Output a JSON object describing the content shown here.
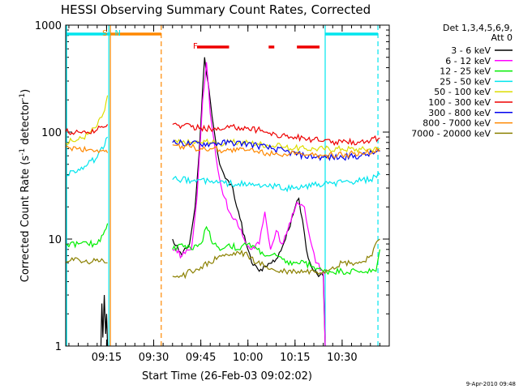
{
  "chart_data": {
    "type": "line",
    "title": "HESSI Observing Summary Count Rates, Corrected",
    "xlabel": "Start Time (26-Feb-03 09:02:02)",
    "ylabel": "Corrected Count Rate (s",
    "ylabel_sup1": "-1",
    "ylabel_mid": " detector",
    "ylabel_sup2": "-1",
    "ylabel_end": ")",
    "yscale": "log",
    "ylim": [
      1,
      1000
    ],
    "xlim": [
      9.033,
      10.75
    ],
    "xticks": [
      {
        "label": "09:15",
        "value": 9.25
      },
      {
        "label": "09:30",
        "value": 9.5
      },
      {
        "label": "09:45",
        "value": 9.75
      },
      {
        "label": "10:00",
        "value": 10.0
      },
      {
        "label": "10:15",
        "value": 10.25
      },
      {
        "label": "10:30",
        "value": 10.5
      }
    ],
    "yticks": [
      {
        "label": "1",
        "value": 1
      },
      {
        "label": "10",
        "value": 10
      },
      {
        "label": "100",
        "value": 100
      },
      {
        "label": "1000",
        "value": 1000
      }
    ],
    "legend_header": [
      "Det 1,3,4,5,6,9,",
      "Att 0"
    ],
    "legend_position": "right",
    "footer_date": "9-Apr-2010 09:48",
    "annotations": [
      {
        "label": "S",
        "time": 9.27,
        "color": "#ff8800"
      },
      {
        "label": "N",
        "time": 9.285,
        "color": "#00e5ee"
      },
      {
        "label": "F",
        "time": 9.7,
        "color": "#ee0000"
      }
    ],
    "flags": [
      {
        "name": "SAA",
        "color": "#ff8800",
        "start": 9.27,
        "end": 9.54
      },
      {
        "name": "Night",
        "color": "#00e5ee",
        "start": 9.033,
        "end": 9.27
      },
      {
        "name": "Night",
        "color": "#00e5ee",
        "start": 10.41,
        "end": 10.69
      },
      {
        "name": "Flare",
        "color": "#ee0000",
        "start": 9.73,
        "end": 9.9
      },
      {
        "name": "Flare",
        "color": "#ee0000",
        "start": 10.11,
        "end": 10.14
      },
      {
        "name": "Flare",
        "color": "#ee0000",
        "start": 10.26,
        "end": 10.38
      }
    ],
    "vlines": [
      {
        "time": 9.262,
        "color": "#00e5ee",
        "style": "solid"
      },
      {
        "time": 9.27,
        "color": "#ff8800",
        "style": "solid"
      },
      {
        "time": 9.54,
        "color": "#ff8800",
        "style": "dashed"
      },
      {
        "time": 10.41,
        "color": "#00e5ee",
        "style": "solid"
      },
      {
        "time": 10.69,
        "color": "#00e5ee",
        "style": "dashed"
      }
    ],
    "series": [
      {
        "name": "3 - 6 keV",
        "color": "#000000",
        "points": [
          [
            9.22,
            1
          ],
          [
            9.225,
            2.5
          ],
          [
            9.23,
            1.2
          ],
          [
            9.238,
            3
          ],
          [
            9.245,
            1.3
          ],
          [
            9.25,
            2
          ],
          [
            9.255,
            1
          ],
          [
            9.6,
            10
          ],
          [
            9.65,
            7
          ],
          [
            9.69,
            9
          ],
          [
            9.72,
            20
          ],
          [
            9.74,
            60
          ],
          [
            9.77,
            500
          ],
          [
            9.8,
            200
          ],
          [
            9.83,
            80
          ],
          [
            9.85,
            50
          ],
          [
            9.88,
            37
          ],
          [
            9.92,
            30
          ],
          [
            9.95,
            18
          ],
          [
            9.99,
            9
          ],
          [
            10.02,
            6
          ],
          [
            10.06,
            5
          ],
          [
            10.1,
            5.5
          ],
          [
            10.15,
            6.5
          ],
          [
            10.2,
            10
          ],
          [
            10.24,
            17
          ],
          [
            10.27,
            24
          ],
          [
            10.29,
            15
          ],
          [
            10.31,
            8
          ],
          [
            10.33,
            6
          ],
          [
            10.35,
            5
          ],
          [
            10.4,
            4.5
          ],
          [
            10.41,
            1
          ]
        ]
      },
      {
        "name": "6 - 12 keV",
        "color": "#ff00ff",
        "points": [
          [
            9.6,
            8
          ],
          [
            9.65,
            7
          ],
          [
            9.7,
            8
          ],
          [
            9.73,
            25
          ],
          [
            9.76,
            200
          ],
          [
            9.78,
            450
          ],
          [
            9.8,
            150
          ],
          [
            9.83,
            60
          ],
          [
            9.86,
            30
          ],
          [
            9.9,
            18
          ],
          [
            9.94,
            15
          ],
          [
            9.98,
            10
          ],
          [
            10.02,
            8
          ],
          [
            10.06,
            9
          ],
          [
            10.09,
            18
          ],
          [
            10.12,
            8
          ],
          [
            10.15,
            12
          ],
          [
            10.18,
            9
          ],
          [
            10.22,
            14
          ],
          [
            10.26,
            22
          ],
          [
            10.3,
            20
          ],
          [
            10.33,
            10
          ],
          [
            10.36,
            6
          ],
          [
            10.4,
            5
          ],
          [
            10.41,
            1
          ]
        ]
      },
      {
        "name": "12 - 25 keV",
        "color": "#00ee00",
        "points": [
          [
            9.033,
            9
          ],
          [
            9.1,
            9
          ],
          [
            9.15,
            9
          ],
          [
            9.2,
            9
          ],
          [
            9.24,
            12
          ],
          [
            9.255,
            14
          ],
          [
            9.6,
            8
          ],
          [
            9.65,
            9
          ],
          [
            9.7,
            8
          ],
          [
            9.75,
            9
          ],
          [
            9.78,
            13
          ],
          [
            9.82,
            9
          ],
          [
            9.86,
            8
          ],
          [
            9.9,
            9
          ],
          [
            9.95,
            8
          ],
          [
            10.0,
            9
          ],
          [
            10.05,
            8
          ],
          [
            10.1,
            7
          ],
          [
            10.15,
            7
          ],
          [
            10.2,
            6
          ],
          [
            10.25,
            6
          ],
          [
            10.3,
            6
          ],
          [
            10.35,
            5.5
          ],
          [
            10.4,
            5
          ],
          [
            10.5,
            5
          ],
          [
            10.6,
            5
          ],
          [
            10.68,
            5
          ],
          [
            10.7,
            8
          ]
        ]
      },
      {
        "name": "25 - 50 keV",
        "color": "#00e5ee",
        "points": [
          [
            9.033,
            40
          ],
          [
            9.1,
            45
          ],
          [
            9.15,
            50
          ],
          [
            9.2,
            58
          ],
          [
            9.24,
            75
          ],
          [
            9.255,
            90
          ],
          [
            9.6,
            36
          ],
          [
            9.65,
            36
          ],
          [
            9.7,
            35
          ],
          [
            9.75,
            36
          ],
          [
            9.8,
            34
          ],
          [
            9.85,
            34
          ],
          [
            9.9,
            33
          ],
          [
            9.95,
            33
          ],
          [
            10.0,
            32
          ],
          [
            10.05,
            32
          ],
          [
            10.1,
            31
          ],
          [
            10.15,
            31
          ],
          [
            10.2,
            30
          ],
          [
            10.25,
            30
          ],
          [
            10.3,
            31
          ],
          [
            10.35,
            32
          ],
          [
            10.4,
            32
          ],
          [
            10.45,
            33
          ],
          [
            10.5,
            34
          ],
          [
            10.55,
            34
          ],
          [
            10.6,
            35
          ],
          [
            10.65,
            36
          ],
          [
            10.7,
            40
          ]
        ]
      },
      {
        "name": "50 - 100 keV",
        "color": "#dddd00",
        "points": [
          [
            9.033,
            80
          ],
          [
            9.1,
            85
          ],
          [
            9.15,
            95
          ],
          [
            9.2,
            115
          ],
          [
            9.24,
            160
          ],
          [
            9.255,
            220
          ],
          [
            9.6,
            80
          ],
          [
            9.65,
            80
          ],
          [
            9.7,
            80
          ],
          [
            9.75,
            80
          ],
          [
            9.8,
            80
          ],
          [
            9.85,
            78
          ],
          [
            9.9,
            80
          ],
          [
            9.95,
            80
          ],
          [
            10.0,
            80
          ],
          [
            10.05,
            78
          ],
          [
            10.1,
            76
          ],
          [
            10.15,
            74
          ],
          [
            10.2,
            72
          ],
          [
            10.25,
            71
          ],
          [
            10.3,
            70
          ],
          [
            10.35,
            70
          ],
          [
            10.4,
            70
          ],
          [
            10.5,
            70
          ],
          [
            10.6,
            69
          ],
          [
            10.7,
            70
          ]
        ]
      },
      {
        "name": "100 - 300 keV",
        "color": "#ee0000",
        "points": [
          [
            9.033,
            100
          ],
          [
            9.1,
            100
          ],
          [
            9.15,
            100
          ],
          [
            9.2,
            105
          ],
          [
            9.24,
            112
          ],
          [
            9.255,
            118
          ],
          [
            9.6,
            118
          ],
          [
            9.65,
            115
          ],
          [
            9.7,
            112
          ],
          [
            9.75,
            110
          ],
          [
            9.8,
            108
          ],
          [
            9.85,
            105
          ],
          [
            9.9,
            110
          ],
          [
            9.95,
            112
          ],
          [
            10.0,
            110
          ],
          [
            10.05,
            105
          ],
          [
            10.1,
            100
          ],
          [
            10.15,
            95
          ],
          [
            10.2,
            92
          ],
          [
            10.25,
            90
          ],
          [
            10.3,
            88
          ],
          [
            10.35,
            85
          ],
          [
            10.4,
            82
          ],
          [
            10.5,
            80
          ],
          [
            10.6,
            82
          ],
          [
            10.7,
            88
          ]
        ]
      },
      {
        "name": "300 - 800 keV",
        "color": "#0000ee",
        "points": [
          [
            9.6,
            80
          ],
          [
            9.7,
            78
          ],
          [
            9.8,
            78
          ],
          [
            9.9,
            80
          ],
          [
            10.0,
            78
          ],
          [
            10.1,
            72
          ],
          [
            10.2,
            66
          ],
          [
            10.3,
            60
          ],
          [
            10.4,
            58
          ],
          [
            10.5,
            58
          ],
          [
            10.6,
            60
          ],
          [
            10.7,
            66
          ]
        ]
      },
      {
        "name": "800 - 7000 keV",
        "color": "#ff8800",
        "points": [
          [
            9.033,
            72
          ],
          [
            9.1,
            70
          ],
          [
            9.15,
            68
          ],
          [
            9.2,
            68
          ],
          [
            9.24,
            66
          ],
          [
            9.255,
            64
          ],
          [
            9.6,
            76
          ],
          [
            9.65,
            74
          ],
          [
            9.7,
            72
          ],
          [
            9.75,
            70
          ],
          [
            9.8,
            70
          ],
          [
            9.85,
            68
          ],
          [
            9.9,
            68
          ],
          [
            9.95,
            68
          ],
          [
            10.0,
            68
          ],
          [
            10.05,
            66
          ],
          [
            10.1,
            64
          ],
          [
            10.15,
            64
          ],
          [
            10.2,
            62
          ],
          [
            10.25,
            62
          ],
          [
            10.3,
            60
          ],
          [
            10.35,
            60
          ],
          [
            10.4,
            60
          ],
          [
            10.5,
            61
          ],
          [
            10.6,
            64
          ],
          [
            10.7,
            68
          ]
        ]
      },
      {
        "name": "7000 - 20000 keV",
        "color": "#8b8000",
        "points": [
          [
            9.033,
            6
          ],
          [
            9.1,
            6.5
          ],
          [
            9.15,
            6
          ],
          [
            9.2,
            6.5
          ],
          [
            9.24,
            6
          ],
          [
            9.255,
            6
          ],
          [
            9.6,
            4.5
          ],
          [
            9.65,
            4.5
          ],
          [
            9.7,
            5
          ],
          [
            9.75,
            5.5
          ],
          [
            9.8,
            6
          ],
          [
            9.85,
            7
          ],
          [
            9.9,
            7
          ],
          [
            9.95,
            7.5
          ],
          [
            10.0,
            7
          ],
          [
            10.05,
            6
          ],
          [
            10.1,
            5.5
          ],
          [
            10.15,
            5
          ],
          [
            10.2,
            5
          ],
          [
            10.25,
            5
          ],
          [
            10.3,
            5
          ],
          [
            10.35,
            5
          ],
          [
            10.4,
            5
          ],
          [
            10.45,
            5.5
          ],
          [
            10.5,
            6
          ],
          [
            10.55,
            6
          ],
          [
            10.6,
            6
          ],
          [
            10.65,
            7
          ],
          [
            10.7,
            10
          ]
        ]
      }
    ]
  }
}
